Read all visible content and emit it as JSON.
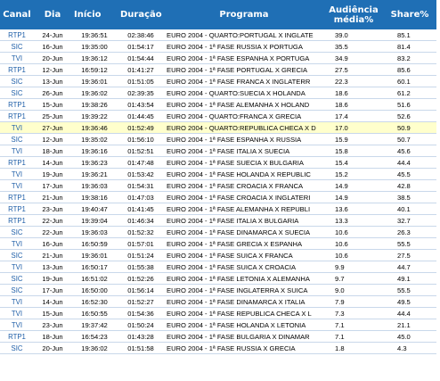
{
  "headers": {
    "canal": "Canal",
    "dia": "Dia",
    "inicio": "Início",
    "duracao": "Duração",
    "programa": "Programa",
    "audiencia": "Audiência média%",
    "share": "Share%"
  },
  "rows": [
    {
      "canal": "RTP1",
      "dia": "24-Jun",
      "inicio": "19:36:51",
      "duracao": "02:38:46",
      "programa": "EURO 2004 - QUARTO:PORTUGAL X INGLATE",
      "audiencia": "39.0",
      "share": "85.1"
    },
    {
      "canal": "SIC",
      "dia": "16-Jun",
      "inicio": "19:35:00",
      "duracao": "01:54:17",
      "programa": "EURO 2004 - 1ª FASE  RUSSIA X PORTUGA",
      "audiencia": "35.5",
      "share": "81.4"
    },
    {
      "canal": "TVI",
      "dia": "20-Jun",
      "inicio": "19:36:12",
      "duracao": "01:54:44",
      "programa": "EURO 2004 - 1ª FASE  ESPANHA X PORTUGA",
      "audiencia": "34.9",
      "share": "83.2"
    },
    {
      "canal": "RTP1",
      "dia": "12-Jun",
      "inicio": "16:59:12",
      "duracao": "01:41:27",
      "programa": "EURO 2004 - 1ª FASE  PORTUGAL X GRECIA",
      "audiencia": "27.5",
      "share": "85.6"
    },
    {
      "canal": "SIC",
      "dia": "13-Jun",
      "inicio": "19:36:01",
      "duracao": "01:51:05",
      "programa": "EURO 2004 - 1ª FASE  FRANCA X INGLATERR",
      "audiencia": "22.3",
      "share": "60.1"
    },
    {
      "canal": "SIC",
      "dia": "26-Jun",
      "inicio": "19:36:02",
      "duracao": "02:39:35",
      "programa": "EURO 2004 - QUARTO:SUECIA X HOLANDA",
      "audiencia": "18.6",
      "share": "61.2"
    },
    {
      "canal": "RTP1",
      "dia": "15-Jun",
      "inicio": "19:38:26",
      "duracao": "01:43:54",
      "programa": "EURO 2004 - 1ª FASE  ALEMANHA X HOLAND",
      "audiencia": "18.6",
      "share": "51.6"
    },
    {
      "canal": "RTP1",
      "dia": "25-Jun",
      "inicio": "19:39:22",
      "duracao": "01:44:45",
      "programa": "EURO 2004 - QUARTO:FRANCA X GRECIA",
      "audiencia": "17.4",
      "share": "52.6"
    },
    {
      "canal": "TVI",
      "dia": "27-Jun",
      "inicio": "19:36:46",
      "duracao": "01:52:49",
      "programa": "EURO 2004 - QUARTO:REPUBLICA CHECA X D",
      "audiencia": "17.0",
      "share": "50.9",
      "highlight": true
    },
    {
      "canal": "SIC",
      "dia": "12-Jun",
      "inicio": "19:35:02",
      "duracao": "01:56:10",
      "programa": "EURO 2004 - 1ª FASE  ESPANHA X RUSSIA",
      "audiencia": "15.9",
      "share": "50.7"
    },
    {
      "canal": "TVI",
      "dia": "18-Jun",
      "inicio": "19:36:16",
      "duracao": "01:52:51",
      "programa": "EURO 2004 - 1ª FASE  ITALIA X SUECIA",
      "audiencia": "15.8",
      "share": "45.6"
    },
    {
      "canal": "RTP1",
      "dia": "14-Jun",
      "inicio": "19:36:23",
      "duracao": "01:47:48",
      "programa": "EURO 2004 - 1ª FASE  SUECIA X BULGARIA",
      "audiencia": "15.4",
      "share": "44.4"
    },
    {
      "canal": "TVI",
      "dia": "19-Jun",
      "inicio": "19:36:21",
      "duracao": "01:53:42",
      "programa": "EURO 2004 - 1ª FASE  HOLANDA X REPUBLIC",
      "audiencia": "15.2",
      "share": "45.5"
    },
    {
      "canal": "TVI",
      "dia": "17-Jun",
      "inicio": "19:36:03",
      "duracao": "01:54:31",
      "programa": "EURO 2004 - 1ª FASE  CROACIA X FRANCA",
      "audiencia": "14.9",
      "share": "42.8"
    },
    {
      "canal": "RTP1",
      "dia": "21-Jun",
      "inicio": "19:38:16",
      "duracao": "01:47:03",
      "programa": "EURO 2004 - 1ª FASE  CROACIA X INGLATERI",
      "audiencia": "14.9",
      "share": "38.5"
    },
    {
      "canal": "RTP1",
      "dia": "23-Jun",
      "inicio": "19:40:47",
      "duracao": "01:41:45",
      "programa": "EURO 2004 - 1ª FASE  ALEMANHA X REPUBLI",
      "audiencia": "13.6",
      "share": "40.1"
    },
    {
      "canal": "RTP1",
      "dia": "22-Jun",
      "inicio": "19:39:04",
      "duracao": "01:46:34",
      "programa": "EURO 2004 - 1ª FASE  ITALIA X BULGARIA",
      "audiencia": "13.3",
      "share": "32.7"
    },
    {
      "canal": "SIC",
      "dia": "22-Jun",
      "inicio": "19:36:03",
      "duracao": "01:52:32",
      "programa": "EURO 2004 - 1ª FASE  DINAMARCA X SUECIA",
      "audiencia": "10.6",
      "share": "26.3"
    },
    {
      "canal": "TVI",
      "dia": "16-Jun",
      "inicio": "16:50:59",
      "duracao": "01:57:01",
      "programa": "EURO 2004 - 1ª FASE  GRECIA X ESPANHA",
      "audiencia": "10.6",
      "share": "55.5"
    },
    {
      "canal": "SIC",
      "dia": "21-Jun",
      "inicio": "19:36:01",
      "duracao": "01:51:24",
      "programa": "EURO 2004 - 1ª FASE  SUICA X FRANCA",
      "audiencia": "10.6",
      "share": "27.5"
    },
    {
      "canal": "TVI",
      "dia": "13-Jun",
      "inicio": "16:50:17",
      "duracao": "01:55:38",
      "programa": "EURO 2004 - 1ª FASE  SUICA X CROACIA",
      "audiencia": "9.9",
      "share": "44.7"
    },
    {
      "canal": "SIC",
      "dia": "19-Jun",
      "inicio": "16:51:02",
      "duracao": "01:52:26",
      "programa": "EURO 2004 - 1ª FASE  LETONIA X ALEMANHA",
      "audiencia": "9.7",
      "share": "49.1"
    },
    {
      "canal": "SIC",
      "dia": "17-Jun",
      "inicio": "16:50:00",
      "duracao": "01:56:14",
      "programa": "EURO 2004 - 1ª FASE  INGLATERRA X SUICA",
      "audiencia": "9.0",
      "share": "55.5"
    },
    {
      "canal": "TVI",
      "dia": "14-Jun",
      "inicio": "16:52:30",
      "duracao": "01:52:27",
      "programa": "EURO 2004 - 1ª FASE  DINAMARCA X ITALIA",
      "audiencia": "7.9",
      "share": "49.5"
    },
    {
      "canal": "TVI",
      "dia": "15-Jun",
      "inicio": "16:50:55",
      "duracao": "01:54:36",
      "programa": "EURO 2004 - 1ª FASE  REPUBLICA CHECA X L",
      "audiencia": "7.3",
      "share": "44.4"
    },
    {
      "canal": "TVI",
      "dia": "23-Jun",
      "inicio": "19:37:42",
      "duracao": "01:50:24",
      "programa": "EURO 2004 - 1ª FASE  HOLANDA X LETONIA",
      "audiencia": "7.1",
      "share": "21.1"
    },
    {
      "canal": "RTP1",
      "dia": "18-Jun",
      "inicio": "16:54:23",
      "duracao": "01:43:28",
      "programa": "EURO 2004 - 1ª FASE  BULGARIA X DINAMAR",
      "audiencia": "7.1",
      "share": "45.0"
    },
    {
      "canal": "SIC",
      "dia": "20-Jun",
      "inicio": "19:36:02",
      "duracao": "01:51:58",
      "programa": "EURO 2004 - 1ª FASE  RUSSIA X GRECIA",
      "audiencia": "1.8",
      "share": "4.3"
    }
  ],
  "colors": {
    "header_bg": "#1f6fb5",
    "header_text": "#ffffff",
    "canal_text": "#1f5fa8",
    "highlight_row": "#ffffcc",
    "row_border": "#c9d8ea"
  }
}
